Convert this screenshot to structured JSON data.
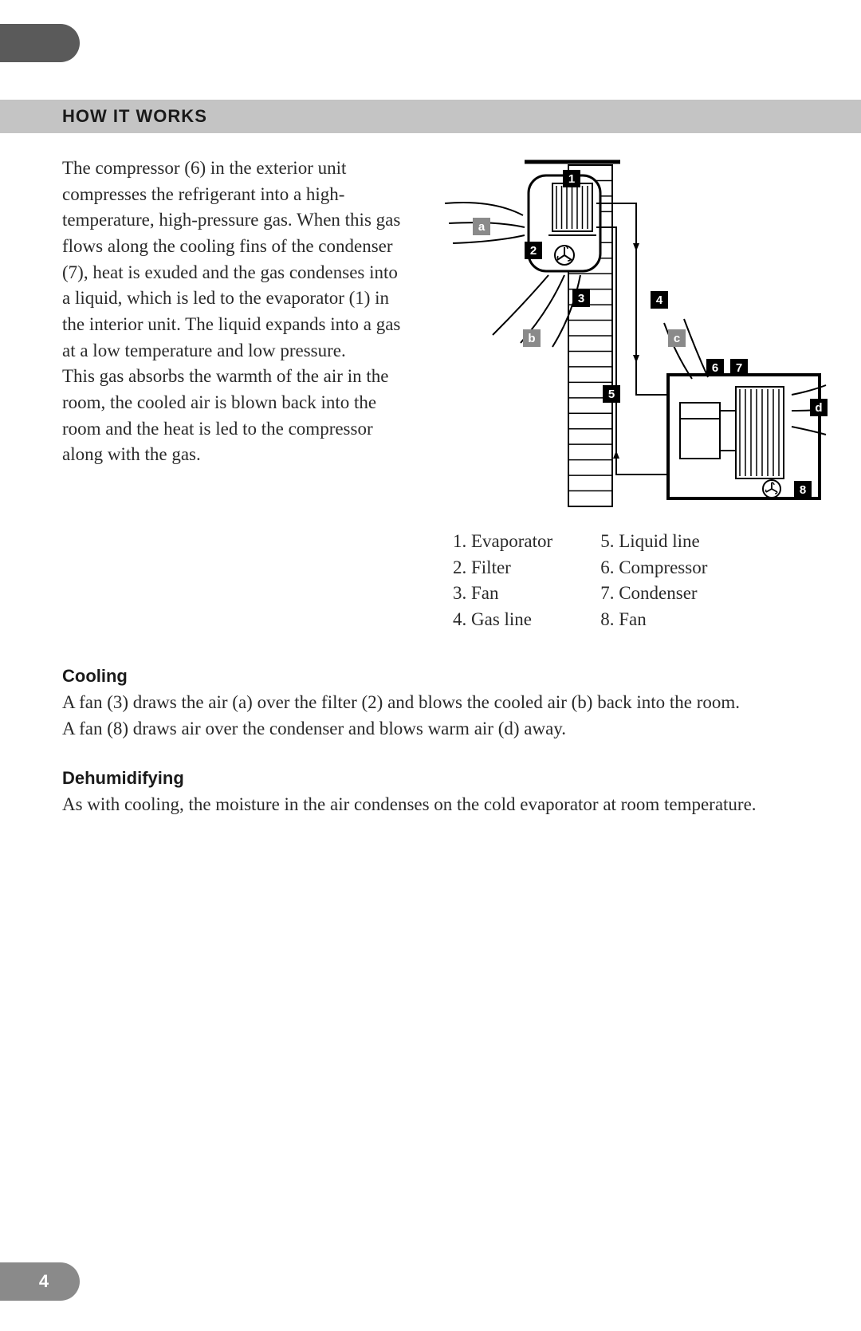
{
  "page_number": "4",
  "section_title": "HOW IT WORKS",
  "intro_paragraph_1": "The compressor (6) in the exterior unit compresses the refrigerant into a high-temperature, high-pressure gas. When this gas flows along the cooling fins of the condenser (7), heat is exuded and the gas condenses into a liquid, which is led to the evaporator (1) in the interior unit. The liquid expands into a gas at a low temperature and low pressure.",
  "intro_paragraph_2": "This gas absorbs the warmth of the air in the room, the cooled air is blown back into the room and the heat is led to the compressor along with the gas.",
  "legend": {
    "col1": [
      {
        "num": "1.",
        "label": "Evaporator"
      },
      {
        "num": "2.",
        "label": "Filter"
      },
      {
        "num": "3.",
        "label": "Fan"
      },
      {
        "num": "4.",
        "label": "Gas line"
      }
    ],
    "col2": [
      {
        "num": "5.",
        "label": "Liquid line"
      },
      {
        "num": "6.",
        "label": "Compressor"
      },
      {
        "num": "7.",
        "label": "Condenser"
      },
      {
        "num": "8.",
        "label": "Fan"
      }
    ]
  },
  "cooling": {
    "heading": "Cooling",
    "p1": "A fan (3) draws the air (a) over the filter (2) and blows the cooled air (b) back into the room.",
    "p2": "A fan (8) draws air over the condenser and blows warm air (d) away."
  },
  "dehumidifying": {
    "heading": "Dehumidifying",
    "p1": "As with cooling, the moisture in the air condenses on the cold evaporator at room temperature."
  },
  "diagram": {
    "type": "technical-illustration",
    "background": "#ffffff",
    "stroke": "#000000",
    "stroke_width": 2,
    "label_bg_black": "#000000",
    "label_bg_gray": "#8a8a8a",
    "label_text": "#ffffff",
    "labels_black": [
      "1",
      "2",
      "3",
      "4",
      "5",
      "6",
      "7",
      "8",
      "d"
    ],
    "labels_gray": [
      "a",
      "b",
      "c"
    ],
    "wall_slats": 22,
    "fan_icon_radius": 12
  }
}
